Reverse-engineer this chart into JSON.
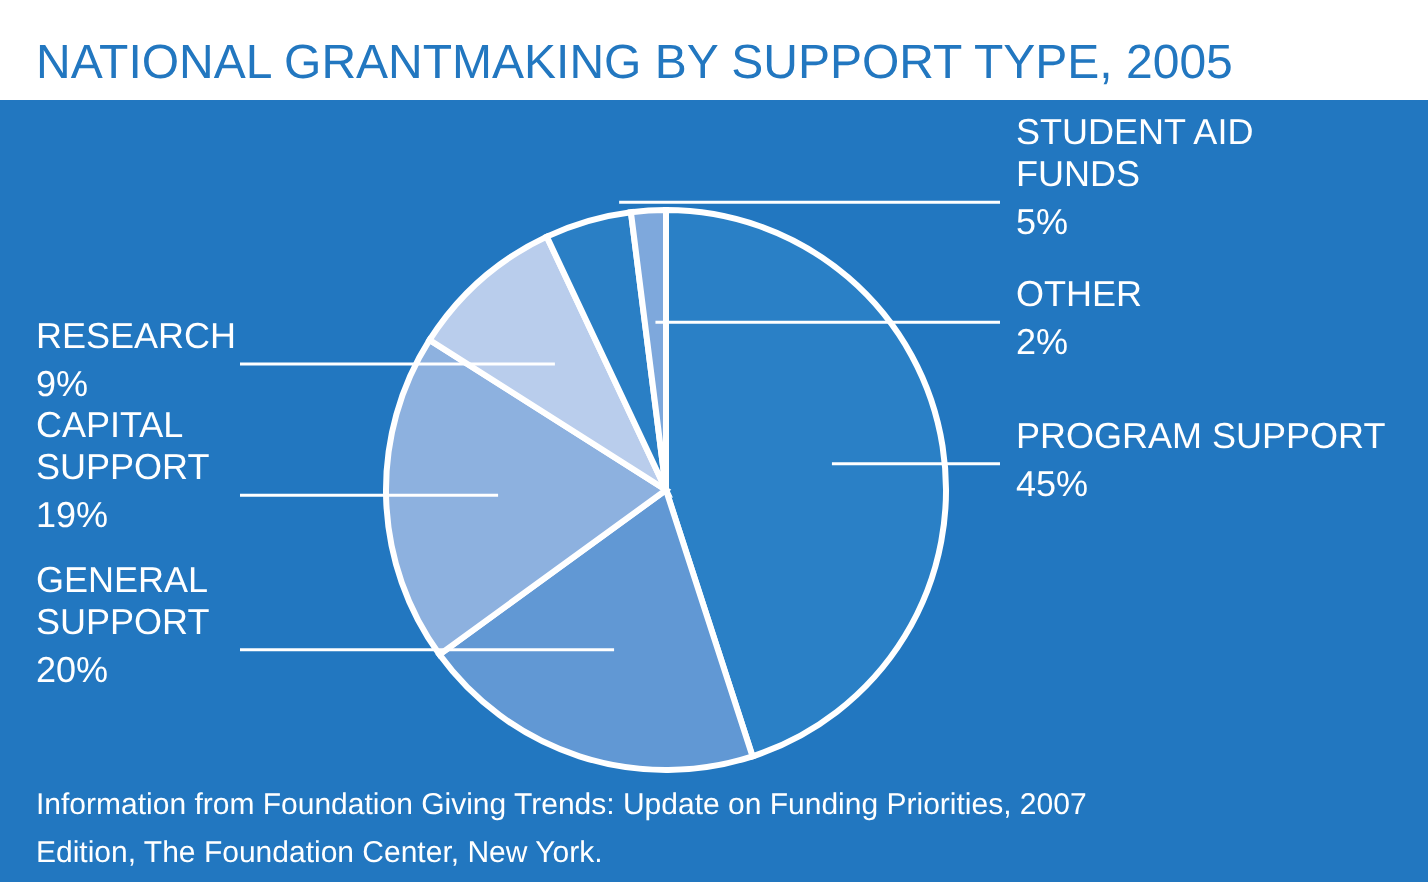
{
  "chart_data": {
    "type": "pie",
    "title": "NATIONAL GRANTMAKING BY SUPPORT TYPE, 2005",
    "categories": [
      "PROGRAM SUPPORT",
      "GENERAL SUPPORT",
      "CAPITAL SUPPORT",
      "RESEARCH",
      "STUDENT AID FUNDS",
      "OTHER"
    ],
    "values": [
      45,
      20,
      19,
      9,
      5,
      2
    ],
    "value_labels": [
      "45%",
      "20%",
      "19%",
      "9%",
      "5%",
      "2%"
    ],
    "colors": [
      "#2a80c6",
      "#6198d4",
      "#8db1df",
      "#b9cdec",
      "#2a7fc5",
      "#7ea8dc"
    ],
    "legend": false,
    "annotations": [
      "Information from Foundation Giving Trends: Update on Funding Priorities, 2007 Edition, The Foundation Center, New York."
    ]
  }
}
